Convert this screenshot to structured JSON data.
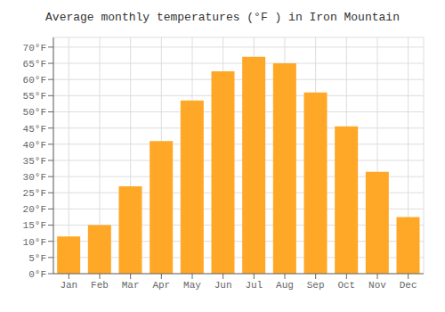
{
  "chart_data": {
    "type": "bar",
    "title": "Average monthly temperatures (°F ) in Iron Mountain",
    "categories": [
      "Jan",
      "Feb",
      "Mar",
      "Apr",
      "May",
      "Jun",
      "Jul",
      "Aug",
      "Sep",
      "Oct",
      "Nov",
      "Dec"
    ],
    "values": [
      11.5,
      15.0,
      27.0,
      41.0,
      53.5,
      62.5,
      67.0,
      65.0,
      56.0,
      45.5,
      31.5,
      17.5
    ],
    "color": "#FFA726",
    "ylim": [
      0,
      73
    ],
    "yticks": [
      {
        "value": 0,
        "label": "0°F"
      },
      {
        "value": 5,
        "label": "5°F"
      },
      {
        "value": 10,
        "label": "10°F"
      },
      {
        "value": 15,
        "label": "15°F"
      },
      {
        "value": 20,
        "label": "20°F"
      },
      {
        "value": 25,
        "label": "25°F"
      },
      {
        "value": 30,
        "label": "30°F"
      },
      {
        "value": 35,
        "label": "35°F"
      },
      {
        "value": 40,
        "label": "40°F"
      },
      {
        "value": 45,
        "label": "45°F"
      },
      {
        "value": 50,
        "label": "50°F"
      },
      {
        "value": 55,
        "label": "55°F"
      },
      {
        "value": 60,
        "label": "60°F"
      },
      {
        "value": 65,
        "label": "65°F"
      },
      {
        "value": 70,
        "label": "70°F"
      }
    ],
    "grid": true
  }
}
